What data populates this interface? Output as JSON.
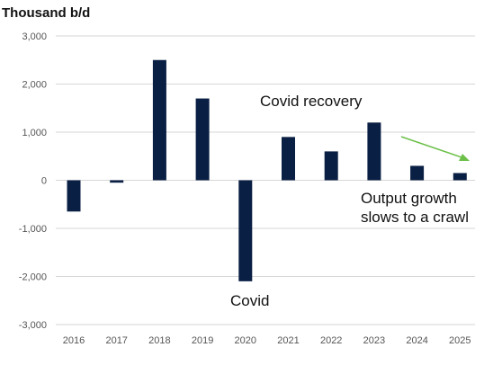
{
  "chart_data": {
    "type": "bar",
    "unit_label": "Thousand b/d",
    "categories": [
      "2016",
      "2017",
      "2018",
      "2019",
      "2020",
      "2021",
      "2022",
      "2023",
      "2024",
      "2025"
    ],
    "values": [
      -650,
      -50,
      2500,
      1700,
      -2100,
      900,
      600,
      1200,
      300,
      150
    ],
    "y_ticks": [
      3000,
      2000,
      1000,
      0,
      -1000,
      -2000,
      -3000
    ],
    "y_tick_labels": [
      "3,000",
      "2,000",
      "1,000",
      "0",
      "-1,000",
      "-2,000",
      "-3,000"
    ],
    "ylim": [
      -3000,
      3000
    ],
    "grid": true,
    "bar_color": "#0a1f44",
    "annotations": {
      "covid": "Covid",
      "covid_recovery": "Covid recovery",
      "output_growth_line1": "Output growth",
      "output_growth_line2": "slows to a crawl"
    },
    "arrow_color": "#6cc04a"
  }
}
